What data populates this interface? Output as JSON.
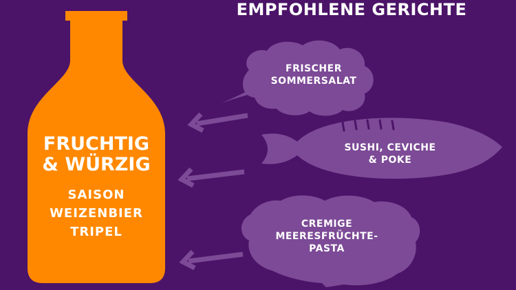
{
  "title": "EMPFOHLENE GERICHTE",
  "bottle": {
    "heading_line1": "FRUCHTIG",
    "heading_line2": "& WÜRZIG",
    "styles": [
      "SAISON",
      "WEIZENBIER",
      "TRIPEL"
    ]
  },
  "dishes": [
    {
      "icon": "leaf-icon",
      "line1": "FRISCHER",
      "line2": "SOMMERSALAT"
    },
    {
      "icon": "fish-icon",
      "line1": "SUSHI, CEVICHE",
      "line2": "& POKE"
    },
    {
      "icon": "shell-icon",
      "line1": "CREMIGE",
      "line2": "MEERESFRÜCHTE-",
      "line3": "PASTA"
    }
  ],
  "colors": {
    "background": "#4b1468",
    "bottle": "#ff8800",
    "icons": "#7c4a96",
    "text": "#ffffff"
  }
}
